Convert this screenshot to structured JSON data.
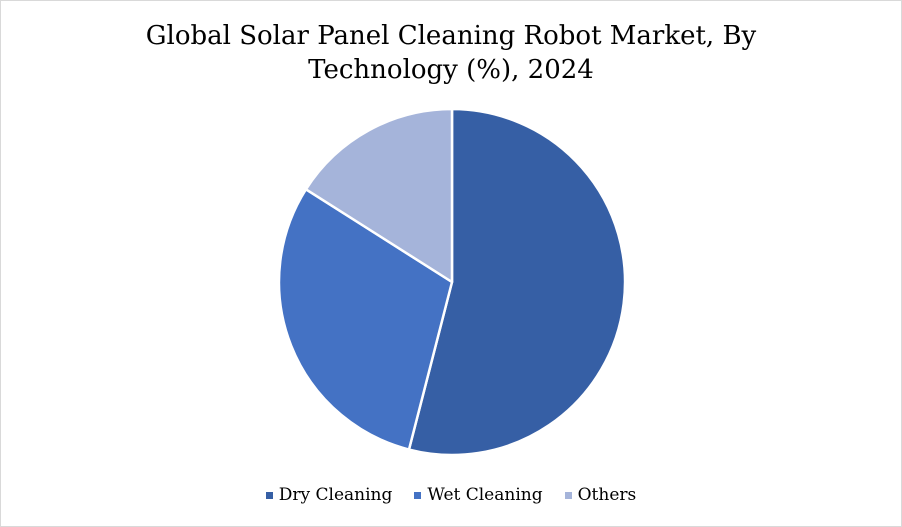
{
  "chart_data": {
    "type": "pie",
    "title_lines": [
      "Global Solar Panel Cleaning Robot Market, By",
      "Technology (%), 2024"
    ],
    "series": [
      {
        "name": "Dry Cleaning",
        "value": 54,
        "color": "#365fa5"
      },
      {
        "name": "Wet Cleaning",
        "value": 30,
        "color": "#4472c4"
      },
      {
        "name": "Others",
        "value": 16,
        "color": "#a5b4da"
      }
    ],
    "legend_position": "bottom"
  }
}
